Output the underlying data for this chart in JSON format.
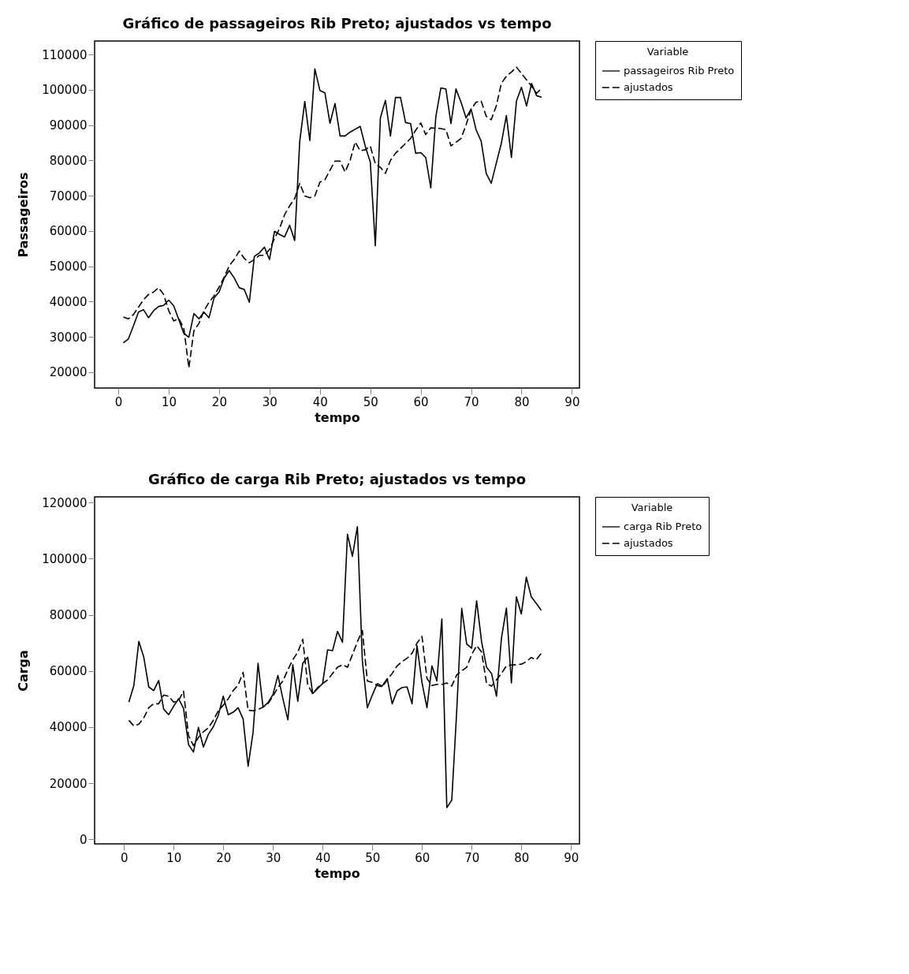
{
  "chart_data": [
    {
      "type": "line",
      "title": "Gráfico de passageiros Rib Preto; ajustados vs tempo",
      "xlabel": "tempo",
      "ylabel": "Passageiros",
      "legend_title": "Variable",
      "legend": "right",
      "grid": false,
      "marker": "none",
      "x": [
        1,
        2,
        3,
        4,
        5,
        6,
        7,
        8,
        9,
        10,
        11,
        12,
        13,
        14,
        15,
        16,
        17,
        18,
        19,
        20,
        21,
        22,
        23,
        24,
        25,
        26,
        27,
        28,
        29,
        30,
        31,
        32,
        33,
        34,
        35,
        36,
        37,
        38,
        39,
        40,
        41,
        42,
        43,
        44,
        45,
        46,
        47,
        48,
        49,
        50,
        51,
        52,
        53,
        54,
        55,
        56,
        57,
        58,
        59,
        60,
        61,
        62,
        63,
        64,
        65,
        66,
        67,
        68,
        69,
        70,
        71,
        72,
        73,
        74,
        75,
        76,
        77,
        78,
        79,
        80,
        81,
        82,
        83,
        84
      ],
      "xlim": [
        -4.7,
        91.5
      ],
      "xticks": [
        0,
        10,
        20,
        30,
        40,
        50,
        60,
        70,
        80,
        90
      ],
      "ylim": [
        15500,
        113800
      ],
      "yticks": [
        20000,
        30000,
        40000,
        50000,
        60000,
        70000,
        80000,
        90000,
        100000,
        110000
      ],
      "series": [
        {
          "name": "passageiros Rib Preto",
          "color": "#000000",
          "line_style": "solid",
          "values": [
            28300,
            29400,
            33100,
            37000,
            37700,
            35400,
            37400,
            38600,
            38900,
            40400,
            38800,
            34900,
            31000,
            29900,
            36600,
            35100,
            37000,
            35400,
            41000,
            42700,
            46600,
            48800,
            46700,
            43900,
            43400,
            39800,
            52800,
            53800,
            55400,
            51900,
            59900,
            59000,
            58300,
            61600,
            57300,
            85400,
            96700,
            85600,
            105900,
            99800,
            99100,
            90500,
            96100,
            86900,
            86900,
            88000,
            88800,
            89600,
            84000,
            79500,
            55800,
            92000,
            97000,
            86900,
            97800,
            97800,
            90700,
            90400,
            82000,
            82200,
            80800,
            72200,
            92300,
            100500,
            100200,
            90400,
            100200,
            96500,
            92000,
            94500,
            88600,
            85400,
            76300,
            73500,
            79200,
            84800,
            92700,
            80800,
            96800,
            100700,
            95400,
            101800,
            98300,
            97900
          ]
        },
        {
          "name": "ajustados",
          "color": "#000000",
          "line_style": "dashed",
          "values": [
            35600,
            35100,
            36300,
            38400,
            40500,
            42000,
            42700,
            43900,
            42000,
            37400,
            34500,
            35200,
            32500,
            21200,
            31700,
            33800,
            37400,
            39800,
            41600,
            44100,
            46900,
            50100,
            51900,
            54300,
            52200,
            51000,
            51900,
            53100,
            53100,
            54700,
            57900,
            60700,
            64600,
            67100,
            69200,
            73500,
            69900,
            69400,
            69900,
            73800,
            74500,
            77200,
            79800,
            79800,
            76700,
            80000,
            85200,
            82700,
            83000,
            84000,
            79000,
            78000,
            76300,
            80000,
            82000,
            83400,
            84800,
            86200,
            88500,
            90600,
            87300,
            89200,
            89100,
            89000,
            88700,
            84100,
            85100,
            86200,
            90000,
            94500,
            96500,
            96800,
            92500,
            91500,
            95400,
            101800,
            103800,
            105000,
            106400,
            104600,
            102800,
            101000,
            99000,
            100400
          ]
        }
      ]
    },
    {
      "type": "line",
      "title": "Gráfico de  carga Rib Preto; ajustados vs tempo",
      "xlabel": "tempo",
      "ylabel": "Carga",
      "legend_title": "Variable",
      "legend": "right",
      "grid": false,
      "marker": "none",
      "x": [
        1,
        2,
        3,
        4,
        5,
        6,
        7,
        8,
        9,
        10,
        11,
        12,
        13,
        14,
        15,
        16,
        17,
        18,
        19,
        20,
        21,
        22,
        23,
        24,
        25,
        26,
        27,
        28,
        29,
        30,
        31,
        32,
        33,
        34,
        35,
        36,
        37,
        38,
        39,
        40,
        41,
        42,
        43,
        44,
        45,
        46,
        47,
        48,
        49,
        50,
        51,
        52,
        53,
        54,
        55,
        56,
        57,
        58,
        59,
        60,
        61,
        62,
        63,
        64,
        65,
        66,
        67,
        68,
        69,
        70,
        71,
        72,
        73,
        74,
        75,
        76,
        77,
        78,
        79,
        80,
        81,
        82,
        83,
        84
      ],
      "xlim": [
        -5.9,
        91.7
      ],
      "xticks": [
        0,
        10,
        20,
        30,
        40,
        50,
        60,
        70,
        80,
        90
      ],
      "ylim": [
        -1600,
        122000
      ],
      "yticks": [
        0,
        20000,
        40000,
        60000,
        80000,
        100000,
        120000
      ],
      "series": [
        {
          "name": "carga Rib Preto",
          "color": "#000000",
          "line_style": "solid",
          "values": [
            48900,
            54800,
            70500,
            64900,
            54300,
            53000,
            56600,
            46400,
            44400,
            47400,
            50100,
            46700,
            33800,
            31100,
            39900,
            32900,
            37400,
            40100,
            44200,
            51000,
            44400,
            45300,
            46900,
            42800,
            26000,
            38100,
            62700,
            47100,
            48700,
            51600,
            58400,
            50100,
            42600,
            62200,
            49200,
            62700,
            64900,
            51900,
            53700,
            55500,
            67500,
            67200,
            74100,
            70200,
            108700,
            100800,
            111400,
            63600,
            46900,
            51400,
            55500,
            54600,
            57300,
            48300,
            52900,
            54100,
            54300,
            48300,
            69000,
            55900,
            46900,
            61800,
            56400,
            78500,
            11300,
            14000,
            46000,
            82300,
            69600,
            68100,
            85000,
            70400,
            61300,
            59100,
            51000,
            71700,
            82400,
            55700,
            86400,
            80300,
            93400,
            86400,
            84100,
            81600
          ]
        },
        {
          "name": "ajustados",
          "color": "#000000",
          "line_style": "dashed",
          "values": [
            42400,
            40400,
            41000,
            43300,
            46900,
            48300,
            48300,
            51400,
            51000,
            48900,
            49400,
            52800,
            37000,
            33400,
            36300,
            38300,
            39700,
            42400,
            45800,
            47800,
            50100,
            53000,
            55000,
            59500,
            46000,
            45800,
            46200,
            47100,
            48300,
            51000,
            54100,
            56400,
            60400,
            64000,
            66700,
            71300,
            55000,
            51900,
            54100,
            55500,
            56800,
            59100,
            61300,
            62200,
            61300,
            65800,
            70400,
            74400,
            56400,
            55900,
            54800,
            54300,
            56800,
            59100,
            61800,
            63300,
            64500,
            66300,
            69900,
            72300,
            57300,
            54800,
            55200,
            55200,
            55700,
            54600,
            58600,
            60000,
            61300,
            65800,
            69000,
            66700,
            55500,
            54600,
            56800,
            59100,
            61800,
            62100,
            62200,
            62400,
            63300,
            64800,
            64000,
            66200
          ]
        }
      ]
    }
  ]
}
